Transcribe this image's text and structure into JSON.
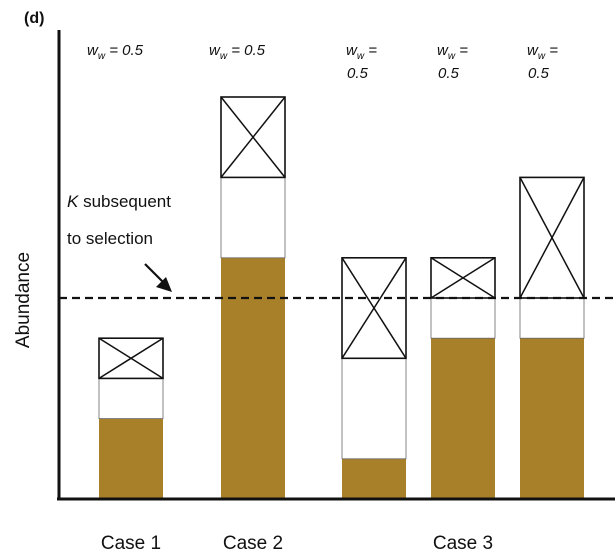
{
  "chart_data": {
    "type": "bar",
    "panel_label": "(d)",
    "ylabel": "Abundance",
    "xlabel": "",
    "annotation": {
      "k_symbol": "K",
      "line1_rest": " subsequent",
      "line2": "to selection"
    },
    "colors": {
      "fill": "#a8802a",
      "outline": "#111111",
      "axis": "#111111"
    },
    "k_value": 5.0,
    "ylim": [
      0,
      10
    ],
    "bars": [
      {
        "group": "Case 1",
        "weight_base": "w",
        "weight_sub": "w",
        "weight_value": " = 0.5",
        "weight_lines": 1,
        "filled": 2.0,
        "white": 1.0,
        "crossed": 1.0
      },
      {
        "group": "Case 2",
        "weight_base": "w",
        "weight_sub": "w",
        "weight_value": " = 0.5",
        "weight_lines": 1,
        "filled": 6.0,
        "white": 2.0,
        "crossed": 2.0
      },
      {
        "group": "Case 3",
        "weight_base": "w",
        "weight_sub": "w",
        "weight_value_line1": " =",
        "weight_value_line2": "0.5",
        "weight_lines": 2,
        "filled": 1.0,
        "white": 2.5,
        "crossed": 2.5
      },
      {
        "group": "Case 3",
        "weight_base": "w",
        "weight_sub": "w",
        "weight_value_line1": " =",
        "weight_value_line2": "0.5",
        "weight_lines": 2,
        "filled": 4.0,
        "white": 1.0,
        "crossed": 1.0
      },
      {
        "group": "Case 3",
        "weight_base": "w",
        "weight_sub": "w",
        "weight_value_line1": " =",
        "weight_value_line2": "0.5",
        "weight_lines": 2,
        "filled": 4.0,
        "white": 1.0,
        "crossed": 3.0
      }
    ],
    "groups": [
      {
        "label": "Case 1",
        "bar_indices": [
          0
        ]
      },
      {
        "label": "Case 2",
        "bar_indices": [
          1
        ]
      },
      {
        "label": "Case 3",
        "bar_indices": [
          2,
          3,
          4
        ]
      }
    ]
  }
}
